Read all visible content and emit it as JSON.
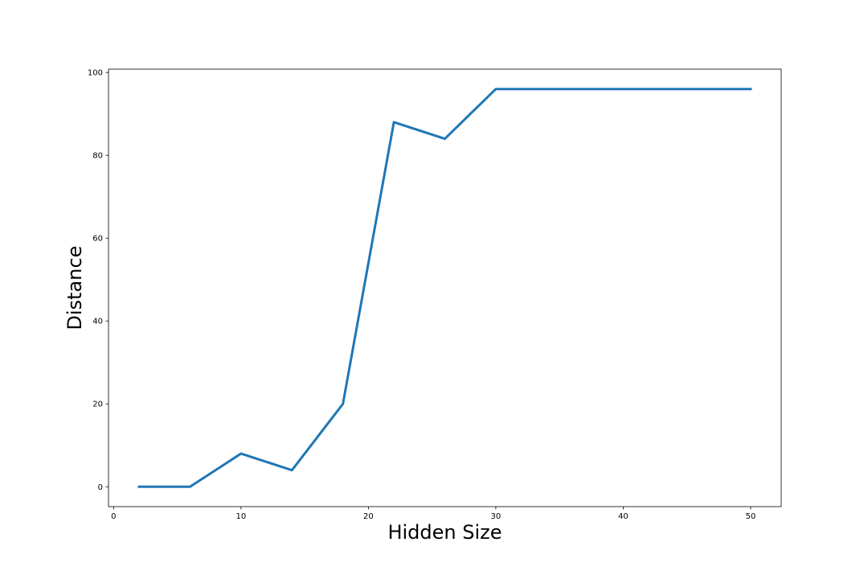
{
  "chart_data": {
    "type": "line",
    "title": "",
    "xlabel": "Hidden Size",
    "ylabel": "Distance",
    "xlim": [
      -0.4,
      52.4
    ],
    "ylim": [
      -4.8,
      100.8
    ],
    "xticks": [
      0,
      10,
      20,
      30,
      40,
      50
    ],
    "yticks": [
      0,
      20,
      40,
      60,
      80,
      100
    ],
    "grid": false,
    "series": [
      {
        "color": "#1f77b4",
        "x": [
          2,
          6,
          10,
          14,
          18,
          22,
          26,
          30,
          34,
          38,
          42,
          46,
          50
        ],
        "y": [
          0,
          0,
          8,
          4,
          20,
          88,
          84,
          96,
          96,
          96,
          96,
          96,
          96
        ]
      }
    ]
  }
}
